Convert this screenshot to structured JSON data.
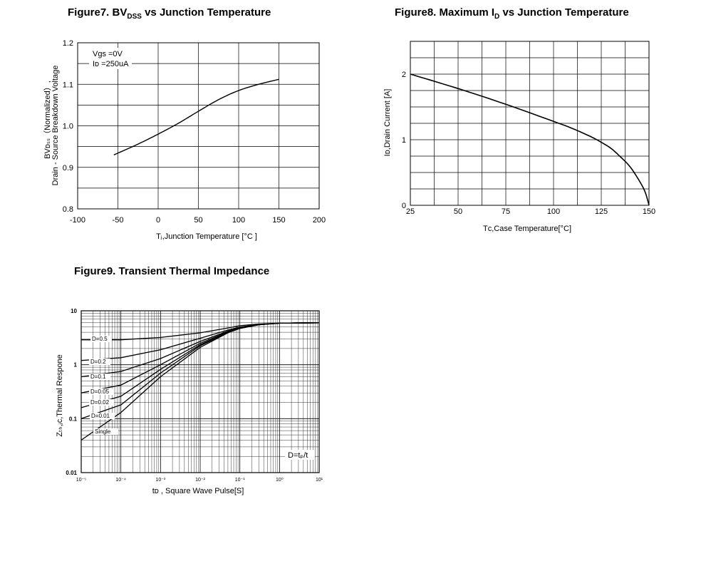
{
  "colors": {
    "line": "#000000",
    "grid": "#000000",
    "background": "#ffffff"
  },
  "chart_data": [
    {
      "id": "fig7",
      "type": "line",
      "title": {
        "main": "Figure7. BV",
        "sub": "DSS",
        "rest": " vs Junction Temperature"
      },
      "xlabel": "Tⱼ,Junction Temperature [°C ]",
      "ylabel_line1": "BVᴅₛₛ（Normalized）,",
      "ylabel_line2": "Drain - Source Breakdown Voltage",
      "xlim": [
        -100,
        200
      ],
      "ylim": [
        0.8,
        1.2
      ],
      "x_ticks": [
        "-100",
        "-50",
        "0",
        "50",
        "100",
        "150",
        "200"
      ],
      "y_ticks": [
        "0.8",
        "0.9",
        "1.0",
        "1.1",
        "1.2"
      ],
      "grid": true,
      "legend": [
        "Vgs =0V",
        "Iᴅ =250uA"
      ],
      "series": [
        {
          "x": [
            -55,
            -25,
            0,
            25,
            50,
            75,
            100,
            125,
            150
          ],
          "y": [
            0.93,
            0.956,
            0.98,
            1.006,
            1.035,
            1.063,
            1.085,
            1.1,
            1.112
          ]
        }
      ]
    },
    {
      "id": "fig8",
      "type": "line",
      "title": {
        "main": "Figure8. Maximum I",
        "sub": "D",
        "rest": " vs Junction Temperature"
      },
      "xlabel": "Tᴄ,Case Temperature[°C]",
      "ylabel": "Iᴅ,Drain Current [A]",
      "xlim": [
        25,
        150
      ],
      "ylim": [
        0,
        2.5
      ],
      "x_ticks": [
        "25",
        "50",
        "75",
        "100",
        "125",
        "150"
      ],
      "y_ticks": [
        "0",
        "1",
        "2"
      ],
      "grid": true,
      "series": [
        {
          "x": [
            25,
            50,
            75,
            100,
            110,
            120,
            125,
            130,
            135,
            140,
            145,
            148,
            150
          ],
          "y": [
            2.0,
            1.78,
            1.54,
            1.28,
            1.17,
            1.04,
            0.96,
            0.87,
            0.74,
            0.59,
            0.37,
            0.2,
            0.0
          ]
        }
      ]
    },
    {
      "id": "fig9",
      "type": "line",
      "title": {
        "main": "Figure9. Transient Thermal Impedance",
        "sub": "",
        "rest": ""
      },
      "xlabel": "tᴅ ,  Square Wave Pulse[S]",
      "ylabel": "Zₜₕ,ⱼᴄ,Thermal Respone",
      "xscale": "log",
      "yscale": "log",
      "xlim": [
        1e-05,
        10
      ],
      "ylim": [
        0.01,
        10
      ],
      "x_ticks": [
        "10⁻⁵",
        "10⁻⁴",
        "10⁻³",
        "10⁻²",
        "10⁻¹",
        "10⁰",
        "10¹"
      ],
      "y_ticks": [
        "0.01",
        "0.1",
        "1",
        "10"
      ],
      "grid": true,
      "annotation": "D=tₚ/t",
      "series": [
        {
          "name": "D=0.5",
          "x": [
            1e-05,
            0.0001,
            0.001,
            0.01,
            0.05,
            0.1,
            0.3,
            1,
            10
          ],
          "y": [
            2.9,
            2.9,
            3.2,
            3.9,
            4.8,
            5.3,
            5.7,
            5.9,
            6.0
          ]
        },
        {
          "name": "D=0.2",
          "x": [
            1e-05,
            0.0001,
            0.001,
            0.01,
            0.05,
            0.1,
            0.3,
            1,
            10
          ],
          "y": [
            1.2,
            1.35,
            1.9,
            3.1,
            4.4,
            5.0,
            5.6,
            5.9,
            6.0
          ]
        },
        {
          "name": "D=0.1",
          "x": [
            1e-05,
            0.0001,
            0.001,
            0.01,
            0.05,
            0.1,
            0.3,
            1,
            10
          ],
          "y": [
            0.6,
            0.75,
            1.3,
            2.7,
            4.2,
            4.9,
            5.5,
            5.9,
            6.0
          ]
        },
        {
          "name": "D=0.05",
          "x": [
            1e-05,
            0.0001,
            0.001,
            0.01,
            0.05,
            0.1,
            0.3,
            1,
            10
          ],
          "y": [
            0.3,
            0.42,
            1.0,
            2.5,
            4.1,
            4.8,
            5.5,
            5.9,
            6.0
          ]
        },
        {
          "name": "D=0.02",
          "x": [
            1e-05,
            0.0001,
            0.001,
            0.01,
            0.05,
            0.1,
            0.3,
            1,
            10
          ],
          "y": [
            0.16,
            0.26,
            0.82,
            2.35,
            4.0,
            4.8,
            5.5,
            5.9,
            6.0
          ]
        },
        {
          "name": "D=0.01",
          "x": [
            1e-05,
            0.0001,
            0.001,
            0.01,
            0.05,
            0.1,
            0.3,
            1,
            10
          ],
          "y": [
            0.1,
            0.18,
            0.7,
            2.25,
            3.95,
            4.75,
            5.5,
            5.9,
            6.0
          ]
        },
        {
          "name": "Single",
          "x": [
            1e-05,
            0.0001,
            0.001,
            0.01,
            0.05,
            0.1,
            0.3,
            1,
            10
          ],
          "y": [
            0.04,
            0.13,
            0.6,
            2.1,
            3.9,
            4.7,
            5.5,
            5.9,
            6.0
          ]
        }
      ]
    }
  ]
}
